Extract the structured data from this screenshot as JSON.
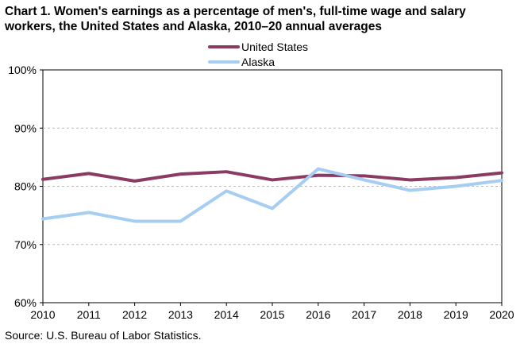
{
  "title_line1": "Chart 1. Women's earnings as a percentage of men's, full-time wage and salary",
  "title_line2": "workers, the United States and Alaska, 2010–20 annual averages",
  "source": "Source:  U.S. Bureau of Labor Statistics.",
  "chart_data": {
    "type": "line",
    "title": "Chart 1. Women's earnings as a percentage of men's, full-time wage and salary workers, the United States and Alaska, 2010–20 annual averages",
    "xlabel": "",
    "ylabel": "",
    "x": [
      "2010",
      "2011",
      "2012",
      "2013",
      "2014",
      "2015",
      "2016",
      "2017",
      "2018",
      "2019",
      "2020"
    ],
    "ylim": [
      60,
      100
    ],
    "yticks": [
      "60%",
      "70%",
      "80%",
      "90%",
      "100%"
    ],
    "grid": true,
    "legend_position": "top-center",
    "series": [
      {
        "name": "United States",
        "color": "#8b3a62",
        "values": [
          81.2,
          82.2,
          80.9,
          82.1,
          82.5,
          81.1,
          81.9,
          81.8,
          81.1,
          81.5,
          82.3
        ]
      },
      {
        "name": "Alaska",
        "color": "#a6cdf2",
        "values": [
          74.4,
          75.5,
          74.0,
          74.0,
          79.2,
          76.2,
          83.0,
          81.1,
          79.3,
          80.0,
          81.0
        ]
      }
    ]
  }
}
